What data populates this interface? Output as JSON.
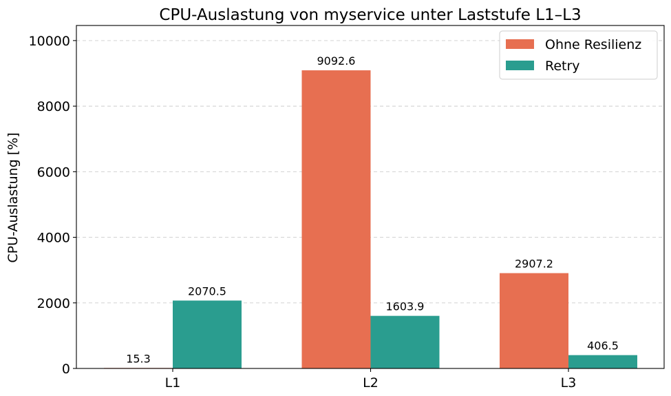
{
  "chart_data": {
    "type": "bar",
    "title": "CPU-Auslastung von myservice unter Laststufe L1–L3",
    "xlabel": "",
    "ylabel": "CPU-Auslastung [%]",
    "categories": [
      "L1",
      "L2",
      "L3"
    ],
    "ylim": [
      0,
      10460
    ],
    "yticks": [
      0,
      2000,
      4000,
      6000,
      8000,
      10000
    ],
    "grid": true,
    "legend_position": "top-right",
    "series": [
      {
        "name": "Ohne Resilienz",
        "color": "#e76f51",
        "values": [
          15.3,
          9092.6,
          2907.2
        ],
        "labels": [
          "15.3",
          "9092.6",
          "2907.2"
        ]
      },
      {
        "name": "Retry",
        "color": "#2a9d8f",
        "values": [
          2070.5,
          1603.9,
          406.5
        ],
        "labels": [
          "2070.5",
          "1603.9",
          "406.5"
        ]
      }
    ]
  }
}
